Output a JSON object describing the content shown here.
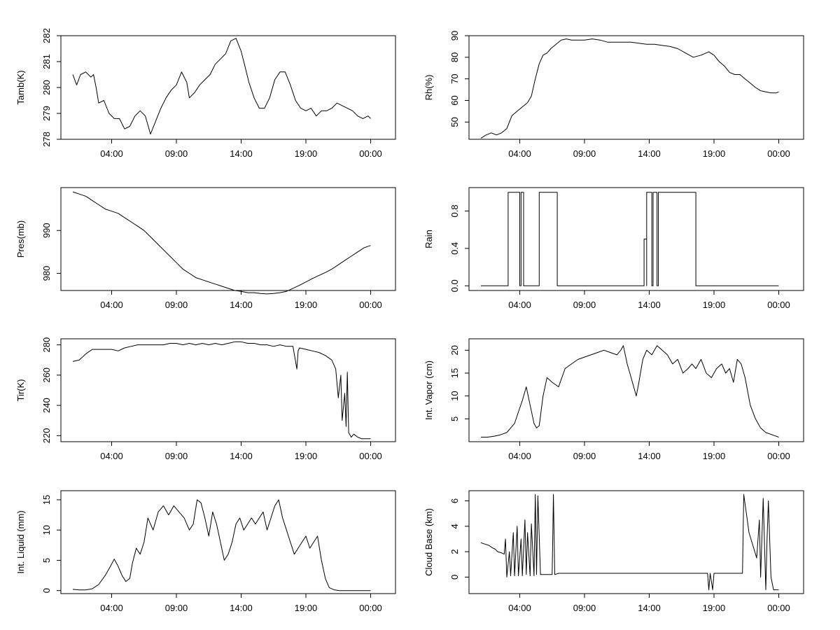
{
  "chart_data": [
    {
      "type": "line",
      "title": "",
      "xlabel": "",
      "ylabel": "Tamb(K)",
      "xlim": [
        0,
        24
      ],
      "ylim": [
        278,
        282
      ],
      "xticks": [
        {
          "v": 3,
          "label": "04:00"
        },
        {
          "v": 8,
          "label": "09:00"
        },
        {
          "v": 13,
          "label": "14:00"
        },
        {
          "v": 18,
          "label": "19:00"
        },
        {
          "v": 23,
          "label": "00:00"
        }
      ],
      "yticks": [
        278,
        279,
        280,
        281,
        282
      ],
      "x": [
        0,
        0.3,
        0.6,
        1,
        1.4,
        1.6,
        1.8,
        2,
        2.4,
        2.8,
        3.2,
        3.6,
        4,
        4.4,
        4.8,
        5.2,
        5.6,
        6,
        6.4,
        6.8,
        7.2,
        7.6,
        8,
        8.4,
        8.8,
        9,
        9.4,
        9.8,
        10.2,
        10.6,
        11,
        11.4,
        11.8,
        12.2,
        12.6,
        13,
        13.3,
        13.6,
        14,
        14.4,
        14.8,
        15.2,
        15.6,
        16,
        16.4,
        16.8,
        17.2,
        17.6,
        18,
        18.4,
        18.8,
        19.2,
        19.6,
        20,
        20.4,
        20.8,
        21.2,
        21.6,
        22,
        22.4,
        22.8,
        23
      ],
      "values": [
        280.5,
        280.1,
        280.5,
        280.6,
        280.4,
        280.5,
        280,
        279.4,
        279.5,
        279,
        278.8,
        278.8,
        278.4,
        278.5,
        278.9,
        279.1,
        278.9,
        278.2,
        278.7,
        279.2,
        279.6,
        279.9,
        280.1,
        280.6,
        280.2,
        279.6,
        279.8,
        280.1,
        280.3,
        280.5,
        280.9,
        281.1,
        281.3,
        281.8,
        281.9,
        281.4,
        280.8,
        280.2,
        279.6,
        279.2,
        279.2,
        279.6,
        280.3,
        280.6,
        280.6,
        280.1,
        279.5,
        279.2,
        279.1,
        279.2,
        278.9,
        279.1,
        279.1,
        279.2,
        279.4,
        279.3,
        279.2,
        279.1,
        278.9,
        278.8,
        278.9,
        278.8
      ]
    },
    {
      "type": "line",
      "title": "",
      "xlabel": "",
      "ylabel": "Rh(%)",
      "xlim": [
        0,
        24
      ],
      "ylim": [
        42,
        90
      ],
      "xticks": [
        {
          "v": 3,
          "label": "04:00"
        },
        {
          "v": 8,
          "label": "09:00"
        },
        {
          "v": 13,
          "label": "14:00"
        },
        {
          "v": 18,
          "label": "19:00"
        },
        {
          "v": 23,
          "label": "00:00"
        }
      ],
      "yticks": [
        50,
        60,
        70,
        80,
        90
      ],
      "x": [
        0,
        0.4,
        0.8,
        1.2,
        1.6,
        2,
        2.4,
        2.8,
        3.2,
        3.6,
        3.9,
        4.2,
        4.5,
        4.8,
        5.1,
        5.4,
        5.8,
        6.2,
        6.6,
        7,
        7.4,
        8,
        8.6,
        9.2,
        9.8,
        10.4,
        11,
        11.6,
        12.2,
        12.8,
        13.4,
        14,
        14.6,
        15.2,
        15.8,
        16.4,
        17,
        17.6,
        18,
        18.4,
        18.8,
        19.2,
        19.6,
        20,
        20.4,
        20.8,
        21.2,
        21.6,
        22,
        22.4,
        22.8,
        23
      ],
      "values": [
        42.5,
        44,
        45,
        44,
        45,
        47,
        53,
        55,
        57,
        59,
        62,
        70,
        77,
        81,
        82,
        84,
        86,
        88,
        88.5,
        88,
        88,
        88,
        88.5,
        88,
        87,
        87,
        87,
        87,
        86.5,
        86,
        86,
        85.5,
        85,
        84,
        82,
        80,
        81,
        82.5,
        81,
        78,
        76,
        73,
        72,
        72,
        70,
        68,
        66,
        64.5,
        64,
        63.5,
        63.5,
        64
      ]
    },
    {
      "type": "line",
      "title": "",
      "xlabel": "",
      "ylabel": "Pres(mb)",
      "xlim": [
        0,
        24
      ],
      "ylim": [
        976,
        1000
      ],
      "xticks": [
        {
          "v": 3,
          "label": "04:00"
        },
        {
          "v": 8,
          "label": "09:00"
        },
        {
          "v": 13,
          "label": "14:00"
        },
        {
          "v": 18,
          "label": "19:00"
        },
        {
          "v": 23,
          "label": "00:00"
        }
      ],
      "yticks": [
        980,
        990
      ],
      "x": [
        0,
        0.5,
        1,
        1.5,
        2,
        2.5,
        3,
        3.5,
        4,
        4.5,
        5,
        5.5,
        6,
        6.5,
        7,
        7.5,
        8,
        8.5,
        9,
        9.5,
        10,
        10.5,
        11,
        11.5,
        12,
        12.5,
        13,
        13.5,
        14,
        14.5,
        15,
        15.5,
        16,
        16.5,
        17,
        17.5,
        18,
        18.5,
        19,
        19.5,
        20,
        20.5,
        21,
        21.5,
        22,
        22.5,
        23
      ],
      "values": [
        999,
        998.5,
        998,
        997,
        996,
        995,
        994.5,
        994,
        993,
        992,
        991,
        990,
        988.5,
        987,
        985.5,
        984,
        982.5,
        981,
        980,
        979,
        978.5,
        978,
        977.5,
        977,
        976.5,
        976,
        975.8,
        975.5,
        975.5,
        975.3,
        975.2,
        975.3,
        975.5,
        975.8,
        976.5,
        977.2,
        978,
        978.8,
        979.5,
        980.2,
        981,
        982,
        983,
        984,
        985,
        986,
        986.5
      ]
    },
    {
      "type": "line",
      "title": "",
      "xlabel": "",
      "ylabel": "Rain",
      "xlim": [
        0,
        24
      ],
      "ylim": [
        -0.05,
        1.05
      ],
      "xticks": [
        {
          "v": 3,
          "label": "04:00"
        },
        {
          "v": 8,
          "label": "09:00"
        },
        {
          "v": 13,
          "label": "14:00"
        },
        {
          "v": 18,
          "label": "19:00"
        },
        {
          "v": 23,
          "label": "00:00"
        }
      ],
      "yticks": [
        0,
        0.4,
        0.8
      ],
      "ytickLabels": [
        "0.0",
        "0.4",
        "0.8"
      ],
      "x": [
        0,
        2.1,
        2.1,
        3,
        3,
        3.1,
        3.1,
        3.3,
        3.3,
        4.5,
        4.5,
        5.9,
        5.9,
        12.6,
        12.6,
        12.8,
        12.8,
        12.8,
        12.8,
        13.2,
        13.2,
        13.3,
        13.3,
        13.6,
        13.6,
        13.7,
        13.7,
        16.6,
        16.6,
        16.7,
        16.7,
        23
      ],
      "values": [
        0,
        0,
        1,
        1,
        0,
        0,
        1,
        1,
        0,
        0,
        1,
        1,
        0,
        0,
        0.5,
        0.5,
        0,
        0,
        1,
        1,
        0,
        0,
        1,
        1,
        0,
        0,
        1,
        1,
        0,
        0,
        0,
        0
      ]
    },
    {
      "type": "line",
      "title": "",
      "xlabel": "",
      "ylabel": "Tir(K)",
      "xlim": [
        0,
        24
      ],
      "ylim": [
        216,
        284
      ],
      "xticks": [
        {
          "v": 3,
          "label": "04:00"
        },
        {
          "v": 8,
          "label": "09:00"
        },
        {
          "v": 13,
          "label": "14:00"
        },
        {
          "v": 18,
          "label": "19:00"
        },
        {
          "v": 23,
          "label": "00:00"
        }
      ],
      "yticks": [
        220,
        240,
        260,
        280
      ],
      "x": [
        0,
        0.5,
        1,
        1.5,
        2,
        2.5,
        3,
        3.5,
        4,
        4.5,
        5,
        5.5,
        6,
        6.5,
        7,
        7.5,
        8,
        8.5,
        9,
        9.5,
        10,
        10.5,
        11,
        11.5,
        12,
        12.5,
        13,
        13.5,
        14,
        14.5,
        15,
        15.5,
        16,
        16.5,
        17,
        17.3,
        17.4,
        17.5,
        18,
        18.5,
        19,
        19.5,
        20,
        20.3,
        20.5,
        20.7,
        20.8,
        21,
        21.1,
        21.2,
        21.3,
        21.5,
        21.7,
        22,
        22.3,
        22.6,
        23
      ],
      "values": [
        269,
        270,
        274,
        277,
        277,
        277,
        277,
        276,
        278,
        279,
        280,
        280,
        280,
        280,
        280,
        281,
        281,
        280,
        281,
        280,
        281,
        280,
        281,
        280,
        281,
        282,
        282,
        281,
        281,
        280,
        280,
        279,
        280,
        279,
        279,
        264,
        276,
        278,
        277,
        276,
        275,
        273,
        270,
        264,
        245,
        260,
        230,
        248,
        226,
        262,
        222,
        219,
        221,
        219,
        218,
        218,
        218
      ]
    },
    {
      "type": "line",
      "title": "",
      "xlabel": "",
      "ylabel": "Int. Vapor (cm)",
      "xlim": [
        0,
        24
      ],
      "ylim": [
        0,
        22.5
      ],
      "xticks": [
        {
          "v": 3,
          "label": "04:00"
        },
        {
          "v": 8,
          "label": "09:00"
        },
        {
          "v": 13,
          "label": "14:00"
        },
        {
          "v": 18,
          "label": "19:00"
        },
        {
          "v": 23,
          "label": "00:00"
        }
      ],
      "yticks": [
        5,
        10,
        15,
        20
      ],
      "x": [
        0,
        0.5,
        1,
        1.5,
        2,
        2.3,
        2.6,
        2.9,
        3.2,
        3.5,
        3.8,
        4.1,
        4.3,
        4.5,
        4.8,
        5.1,
        5.5,
        6,
        6.5,
        7,
        7.5,
        8,
        8.5,
        9,
        9.5,
        10,
        10.5,
        10.8,
        11,
        11.3,
        11.6,
        12,
        12.2,
        12.5,
        12.8,
        13.2,
        13.6,
        14,
        14.4,
        14.8,
        15.2,
        15.6,
        16,
        16.3,
        16.6,
        17,
        17.4,
        17.8,
        18.2,
        18.6,
        18.9,
        19.2,
        19.5,
        19.8,
        20.1,
        20.4,
        20.8,
        21.2,
        21.6,
        22,
        22.5,
        23
      ],
      "values": [
        1,
        1,
        1.2,
        1.5,
        2,
        3,
        4,
        6.5,
        9,
        12,
        8,
        4,
        3,
        3.5,
        10,
        14,
        13,
        12,
        16,
        17,
        18,
        18.5,
        19,
        19.5,
        20,
        19.5,
        19,
        20,
        21,
        17,
        14,
        10,
        13,
        18,
        20,
        19,
        21,
        20,
        19,
        17,
        18,
        15,
        16,
        17,
        16,
        18,
        15,
        14,
        16,
        17,
        15,
        16,
        13,
        18,
        17,
        14,
        8,
        5,
        3,
        2,
        1.5,
        1
      ]
    },
    {
      "type": "line",
      "title": "",
      "xlabel": "",
      "ylabel": "Int. Liquid (mm)",
      "xlim": [
        0,
        24
      ],
      "ylim": [
        -0.5,
        16.5
      ],
      "xticks": [
        {
          "v": 3,
          "label": "04:00"
        },
        {
          "v": 8,
          "label": "09:00"
        },
        {
          "v": 13,
          "label": "14:00"
        },
        {
          "v": 18,
          "label": "19:00"
        },
        {
          "v": 23,
          "label": "00:00"
        }
      ],
      "yticks": [
        0,
        5,
        10,
        15
      ],
      "x": [
        0,
        0.5,
        1,
        1.5,
        2,
        2.5,
        2.9,
        3.2,
        3.5,
        3.8,
        4.1,
        4.4,
        4.6,
        4.9,
        5.2,
        5.5,
        5.8,
        6.2,
        6.6,
        7,
        7.4,
        7.8,
        8.2,
        8.6,
        9,
        9.3,
        9.6,
        9.9,
        10.2,
        10.5,
        10.8,
        11.1,
        11.4,
        11.7,
        12,
        12.3,
        12.6,
        12.9,
        13.2,
        13.5,
        13.8,
        14.1,
        14.4,
        14.7,
        15,
        15.3,
        15.6,
        15.9,
        16.2,
        16.5,
        16.8,
        17.1,
        17.4,
        17.7,
        18,
        18.3,
        18.6,
        18.9,
        19.2,
        19.5,
        19.8,
        20.2,
        20.6,
        21,
        21.5,
        22,
        22.5,
        23
      ],
      "values": [
        0.2,
        0.1,
        0.1,
        0.3,
        1,
        2.5,
        4,
        5.2,
        4,
        2.5,
        1.5,
        2,
        4.5,
        7,
        6,
        8,
        12,
        10,
        13,
        14,
        12.5,
        14,
        13,
        12,
        10,
        11,
        15,
        14.5,
        12,
        9,
        13,
        11,
        8,
        5,
        6,
        8,
        11,
        12,
        10,
        11,
        12,
        11,
        12,
        13,
        10,
        12,
        14,
        15,
        12,
        10,
        8,
        6,
        7,
        8,
        9,
        7,
        8,
        9,
        5,
        2,
        0.5,
        0.1,
        0,
        0,
        0,
        0,
        0,
        0
      ]
    },
    {
      "type": "line",
      "title": "",
      "xlabel": "",
      "ylabel": "Cloud Base (km)",
      "xlim": [
        0,
        24
      ],
      "ylim": [
        -1.3,
        6.8
      ],
      "xticks": [
        {
          "v": 3,
          "label": "04:00"
        },
        {
          "v": 8,
          "label": "09:00"
        },
        {
          "v": 13,
          "label": "14:00"
        },
        {
          "v": 18,
          "label": "19:00"
        },
        {
          "v": 23,
          "label": "00:00"
        }
      ],
      "yticks": [
        0,
        2,
        4,
        6
      ],
      "x": [
        0,
        0.3,
        0.6,
        0.9,
        1.1,
        1.3,
        1.6,
        1.8,
        1.9,
        2,
        2.2,
        2.3,
        2.5,
        2.6,
        2.8,
        2.9,
        3.1,
        3.2,
        3.4,
        3.5,
        3.6,
        3.8,
        3.9,
        4.1,
        4.2,
        4.3,
        4.4,
        4.6,
        5.5,
        5.6,
        5.7,
        6,
        8,
        10,
        12,
        14,
        16,
        17.5,
        17.6,
        17.7,
        17.9,
        18,
        18.1,
        19,
        20.2,
        20.3,
        20.5,
        20.7,
        21,
        21.3,
        21.5,
        21.6,
        21.8,
        22,
        22.1,
        22.2,
        22.4,
        22.6,
        22.8,
        23
      ],
      "values": [
        2.7,
        2.6,
        2.5,
        2.3,
        2.2,
        2,
        1.9,
        1.8,
        3,
        0,
        2,
        0.1,
        3.5,
        0.1,
        4,
        0.1,
        3,
        0.1,
        4.5,
        0.2,
        3.5,
        0.1,
        4.2,
        0.1,
        6.5,
        0.2,
        6.4,
        0.2,
        0.2,
        6.5,
        0.2,
        0.3,
        0.3,
        0.3,
        0.3,
        0.3,
        0.3,
        0.3,
        -1,
        0.3,
        -1,
        0.3,
        0.3,
        0.3,
        0.3,
        6.5,
        5,
        3.5,
        2.5,
        1.5,
        4.5,
        0,
        6.2,
        -1,
        3,
        6,
        0,
        -1,
        -1,
        -1
      ]
    }
  ]
}
